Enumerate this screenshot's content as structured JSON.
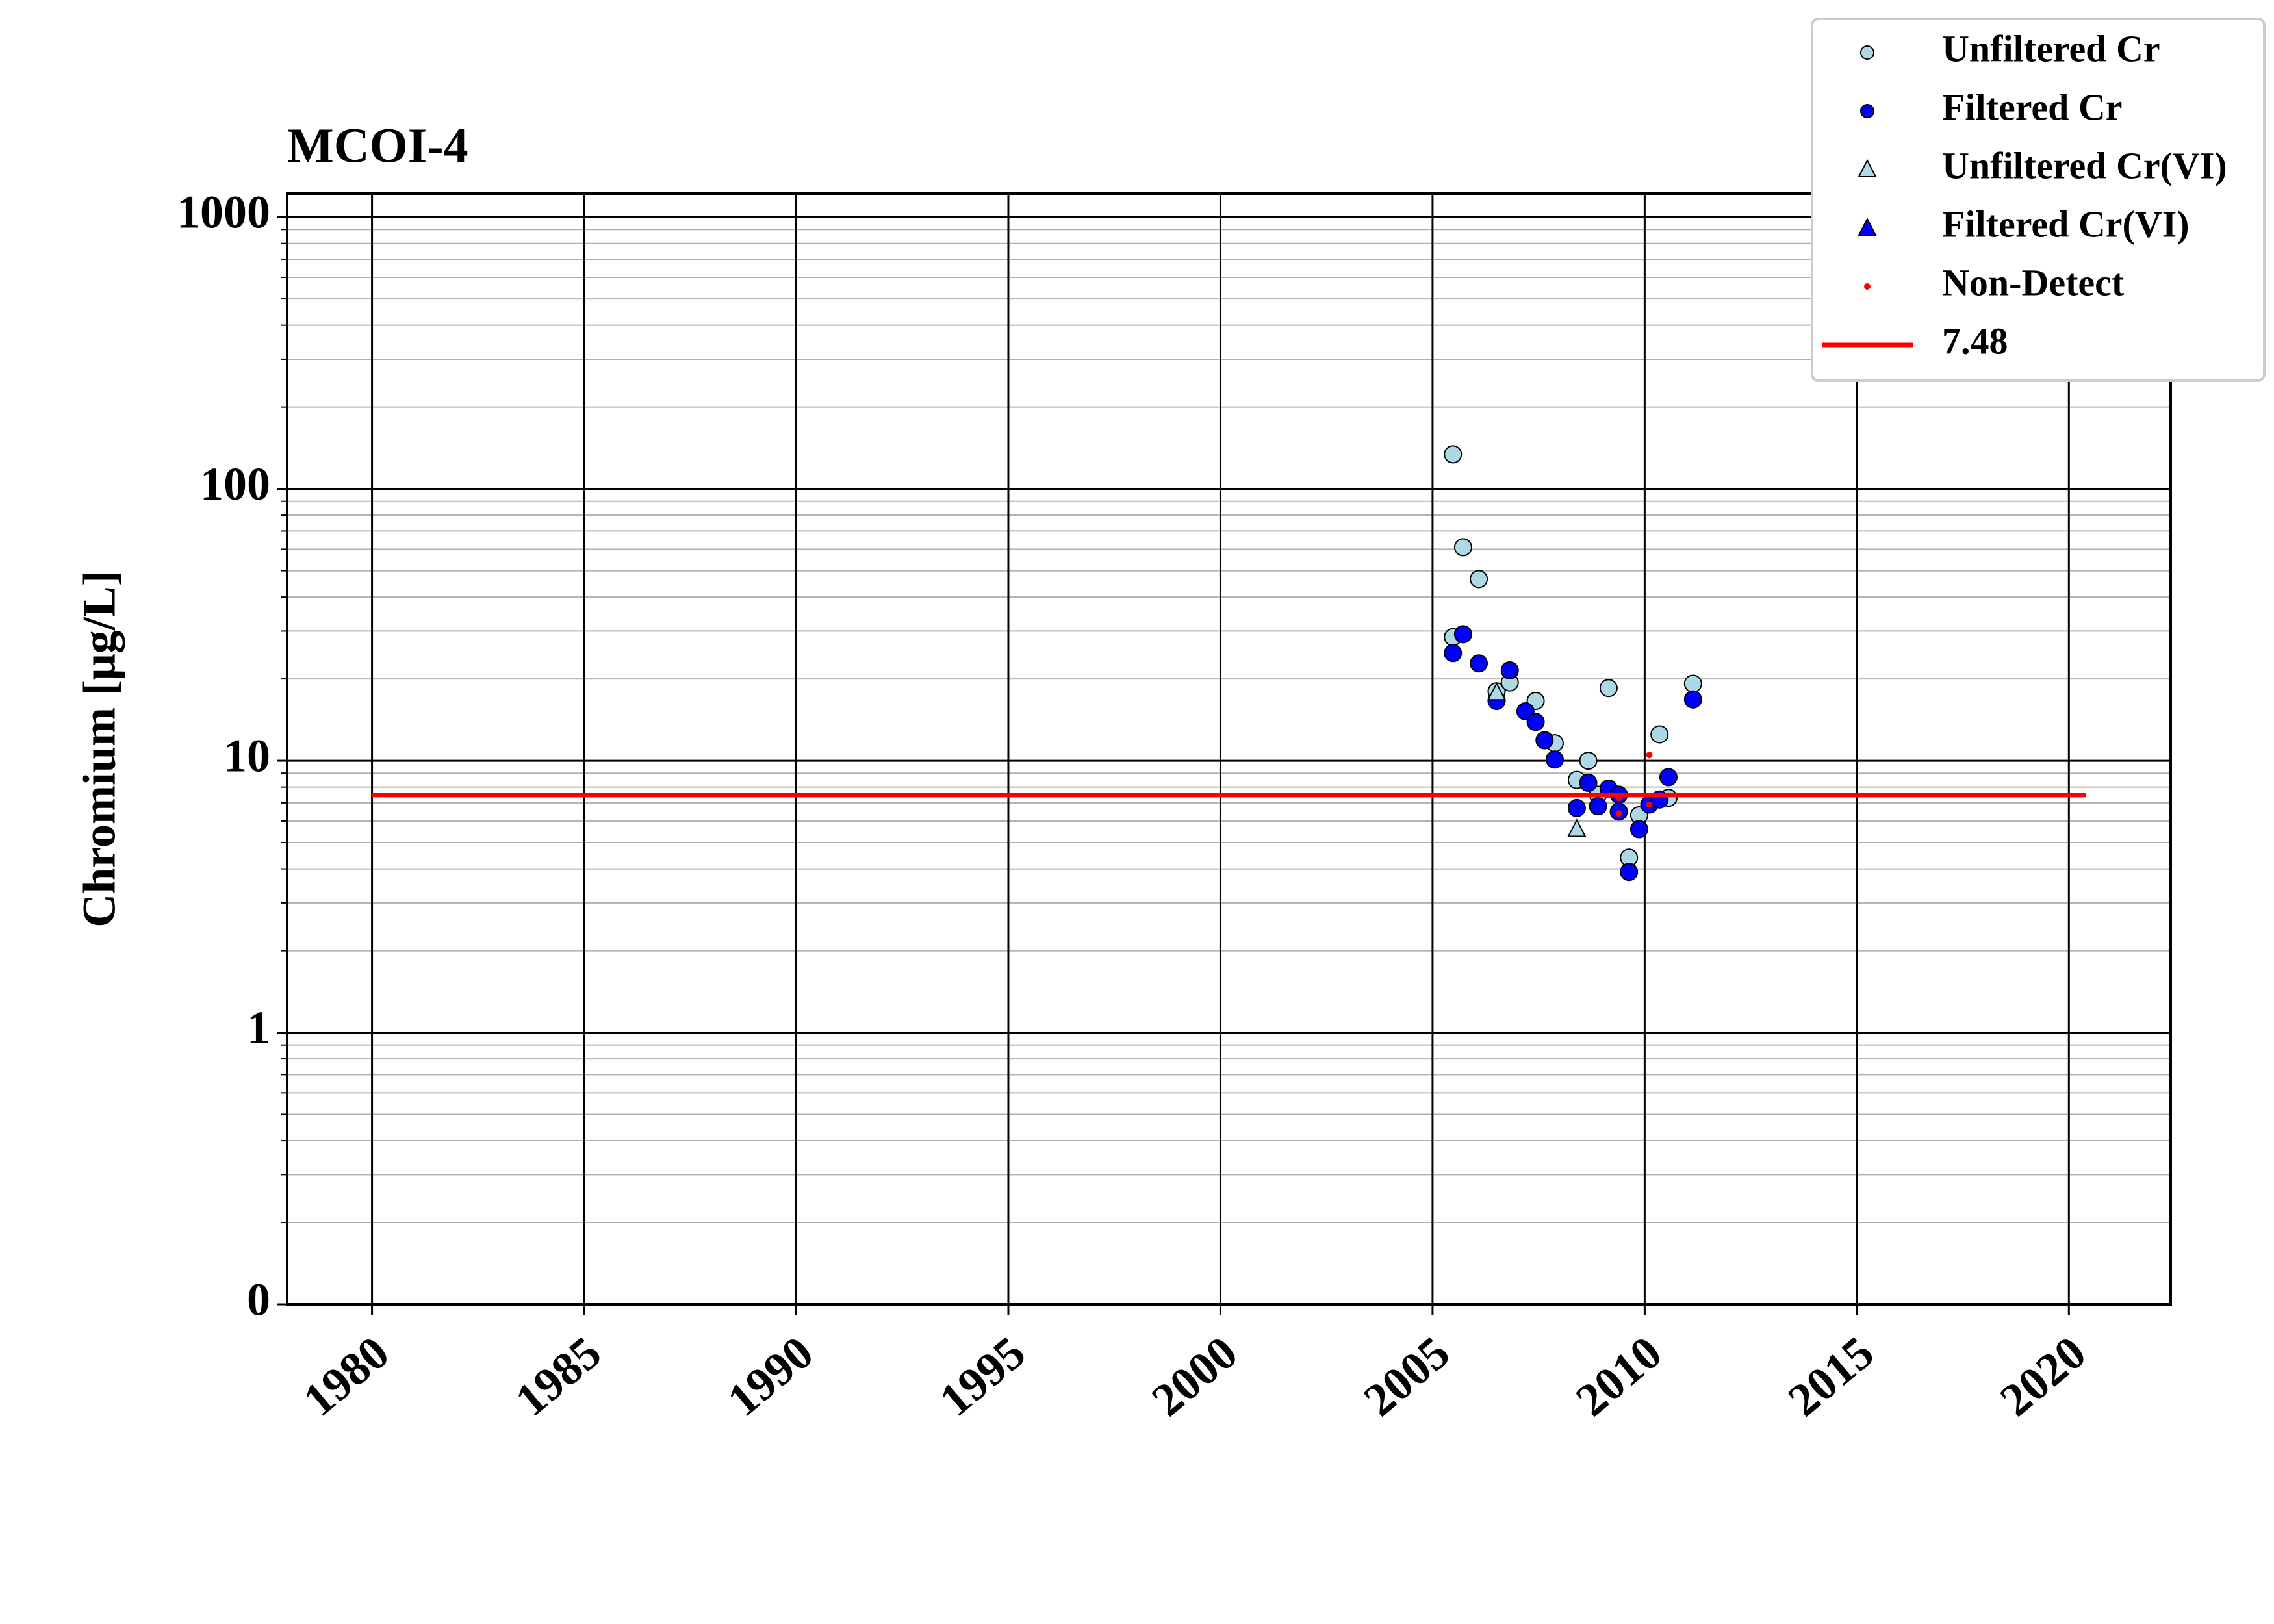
{
  "chart_data": {
    "type": "scatter",
    "title": "MCOI-4",
    "y_label": "Chromium [μg/L]",
    "y_scale": "log",
    "grid": true,
    "minor_grid": true,
    "legend_loc": "upper right",
    "xlim": [
      1978,
      2022.4
    ],
    "xticks": [
      1980,
      1985,
      1990,
      1995,
      2000,
      2005,
      2010,
      2015,
      2020
    ],
    "ylim": [
      0.1,
      1220
    ],
    "yticks": [
      {
        "value": 0.1,
        "label": "0"
      },
      1,
      10,
      100,
      1000
    ],
    "series": [
      {
        "name": "Unfiltered Cr",
        "color": "#add8e6",
        "marker": "circle",
        "x": [
          2005.48,
          2005.72,
          2006.09,
          2005.48,
          2006.51,
          2006.82,
          2007.43,
          2007.88,
          2008.67,
          2008.4,
          2009.15,
          2009.63,
          2009.87,
          2010.35,
          2010.56,
          2011.14,
          2008.9
        ],
        "values": [
          134,
          61,
          46.6,
          28.5,
          18,
          19.4,
          16.6,
          11.6,
          10,
          8.5,
          18.5,
          4.4,
          6.3,
          12.5,
          7.3,
          19.2,
          7.5
        ]
      },
      {
        "name": "Filtered Cr",
        "color": "#0000ff",
        "marker": "circle",
        "x": [
          2005.48,
          2005.72,
          2006.09,
          2006.51,
          2006.82,
          2007.19,
          2007.43,
          2007.64,
          2007.88,
          2008.4,
          2008.67,
          2008.9,
          2009.15,
          2009.39,
          2009.39,
          2009.63,
          2009.87,
          2010.11,
          2010.35,
          2010.56,
          2011.14
        ],
        "values": [
          24.9,
          29.2,
          22.8,
          16.6,
          21.5,
          15.2,
          13.9,
          11.9,
          10.1,
          6.7,
          8.3,
          6.8,
          7.9,
          7.5,
          6.5,
          3.9,
          5.6,
          6.9,
          7.2,
          8.7,
          16.8
        ]
      },
      {
        "name": "Unfiltered Cr(VI)",
        "color": "#add8e6",
        "marker": "triangle",
        "x": [
          2006.51,
          2008.4
        ],
        "values": [
          17.8,
          5.6
        ]
      },
      {
        "name": "Filtered Cr(VI)",
        "color": "#0000ff",
        "marker": "triangle",
        "x": [],
        "values": []
      },
      {
        "name": "Non-Detect",
        "color": "#ff0000",
        "marker": "dot",
        "x": [
          2010.11,
          2009.39,
          2009.39,
          2010.11
        ],
        "values": [
          10.5,
          7.3,
          6.4,
          6.9
        ]
      },
      {
        "name": "7.48",
        "color": "#ff0000",
        "marker": "line",
        "x": [
          1980,
          2020.4
        ],
        "values": [
          7.48,
          7.48
        ]
      }
    ]
  }
}
